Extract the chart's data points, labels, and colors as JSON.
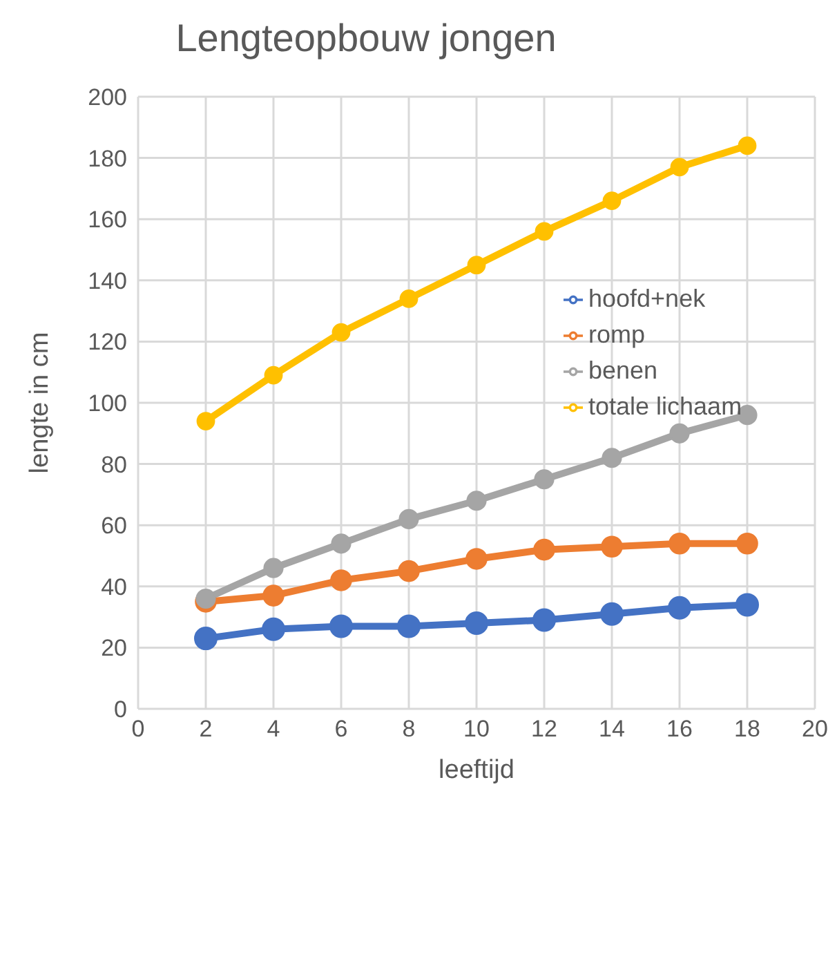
{
  "chart_data": {
    "type": "line",
    "title": "Lengteopbouw jongen",
    "xlabel": "leeftijd",
    "ylabel": "lengte in cm",
    "x": [
      2,
      4,
      6,
      8,
      10,
      12,
      14,
      16,
      18
    ],
    "series": [
      {
        "name": "hoofd+nek",
        "color": "#4472c4",
        "values": [
          23,
          26,
          27,
          27,
          28,
          29,
          31,
          33,
          34
        ]
      },
      {
        "name": "romp",
        "color": "#ed7d31",
        "values": [
          35,
          37,
          42,
          45,
          49,
          52,
          53,
          54,
          54
        ]
      },
      {
        "name": "benen",
        "color": "#a5a5a5",
        "values": [
          36,
          46,
          54,
          62,
          68,
          75,
          82,
          90,
          96
        ]
      },
      {
        "name": "totale lichaam",
        "color": "#ffc000",
        "values": [
          94,
          109,
          123,
          134,
          145,
          156,
          166,
          177,
          184
        ]
      }
    ],
    "xlim": [
      0,
      20
    ],
    "xticks": [
      0,
      2,
      4,
      6,
      8,
      10,
      12,
      14,
      16,
      18,
      20
    ],
    "ylim": [
      0,
      200
    ],
    "yticks": [
      0,
      20,
      40,
      60,
      80,
      100,
      120,
      140,
      160,
      180,
      200
    ],
    "grid": true,
    "legend": "right",
    "marker": "circle",
    "line_style": "solid"
  }
}
